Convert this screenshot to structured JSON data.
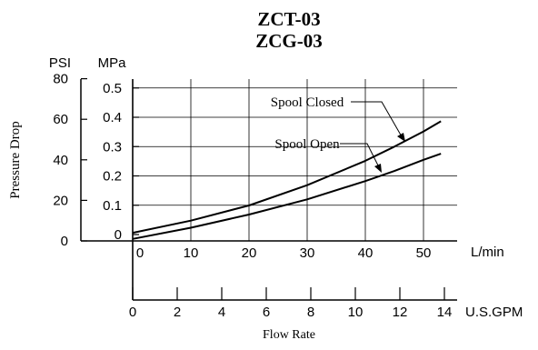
{
  "chart_data": {
    "type": "line",
    "title": "ZCT-03",
    "subtitle": "ZCG-03",
    "ylabel": "Pressure Drop",
    "xlabel": "Flow Rate",
    "y_psi": {
      "unit_label": "PSI",
      "ticks": [
        0,
        20,
        40,
        60,
        80
      ],
      "range": [
        0,
        80
      ]
    },
    "y_mpa": {
      "unit_label": "MPa",
      "ticks": [
        "0",
        "0.1",
        "0.2",
        "0.3",
        "0.4",
        "0.5"
      ],
      "range": [
        0,
        0.55
      ]
    },
    "x_lmin": {
      "unit_label": "L/min",
      "ticks": [
        0,
        10,
        20,
        30,
        40,
        50
      ],
      "range": [
        0,
        54
      ]
    },
    "x_gpm": {
      "unit_label": "U.S.GPM",
      "ticks": [
        0,
        2,
        4,
        6,
        8,
        10,
        12,
        14
      ],
      "range": [
        0,
        14.26
      ]
    },
    "grid": true,
    "series": [
      {
        "name": "Spool Closed",
        "x_lmin": [
          0,
          10,
          20,
          30,
          40,
          45,
          50,
          53
        ],
        "y_psi": [
          4,
          10,
          17.5,
          27.5,
          39.5,
          46.5,
          54,
          59
        ]
      },
      {
        "name": "Spool Open",
        "x_lmin": [
          0,
          10,
          20,
          30,
          40,
          45,
          50,
          53
        ],
        "y_psi": [
          1,
          6.5,
          13,
          20.5,
          29.5,
          34.5,
          40,
          43
        ]
      }
    ]
  }
}
